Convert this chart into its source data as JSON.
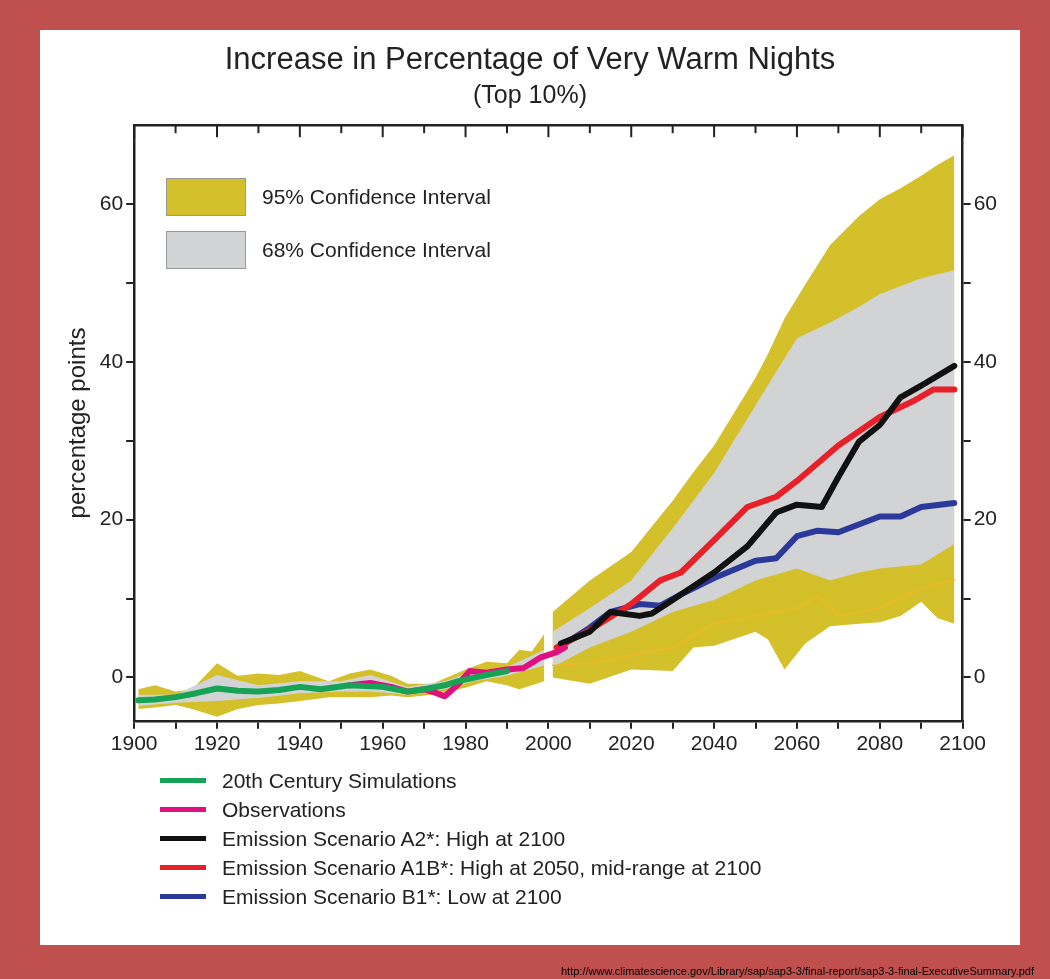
{
  "chart_data": {
    "type": "line",
    "title": "Increase in Percentage of Very Warm Nights",
    "subtitle": "(Top 10%)",
    "ylabel": "percentage points",
    "xlim": [
      1900,
      2100
    ],
    "xticks": [
      1900,
      {
        "value": 1910,
        "label": null
      },
      1920,
      {
        "value": 1930,
        "label": null
      },
      1940,
      {
        "value": 1950,
        "label": null
      },
      1960,
      {
        "value": 1970,
        "label": null
      },
      1980,
      {
        "value": 1990,
        "label": null
      },
      2000,
      {
        "value": 2010,
        "label": null
      },
      2020,
      {
        "value": 2030,
        "label": null
      },
      2040,
      {
        "value": 2050,
        "label": null
      },
      2060,
      {
        "value": 2070,
        "label": null
      },
      2080,
      {
        "value": 2090,
        "label": null
      },
      2100
    ],
    "ylim": [
      -5.5,
      70
    ],
    "yticks": [
      0,
      {
        "value": 10,
        "label": null
      },
      20,
      {
        "value": 30,
        "label": null
      },
      40,
      {
        "value": 50,
        "label": null
      },
      60
    ],
    "y2lim": [
      -5.5,
      70
    ],
    "y2ticks": [
      0,
      {
        "value": 10,
        "label": null
      },
      20,
      {
        "value": 30,
        "label": null
      },
      40,
      {
        "value": 50,
        "label": null
      },
      60
    ],
    "grid": false,
    "legend": "bottom",
    "marker": "none",
    "line_style": "solid",
    "annotations": [
      "http://www.climatescience.gov/Library/sap/sap3-3/final-report/sap3-3-final-ExecutiveSummary.pdf"
    ],
    "series": [
      {
        "name": "95% Confidence Interval",
        "type": "area",
        "color": "#d4c02a",
        "x": [
          1901,
          1905,
          1910,
          1914,
          1920,
          1925,
          1930,
          1935,
          1940,
          1947,
          1952,
          1957,
          1962,
          1966,
          1972,
          1980,
          1985,
          1990,
          1993,
          1996,
          1999,
          2000,
          2001,
          2010,
          2020,
          2030,
          2035,
          2040,
          2050,
          2053,
          2057,
          2062,
          2068,
          2075,
          2080,
          2085,
          2090,
          2094,
          2098
        ],
        "values": [
          null,
          null,
          null,
          null,
          null,
          null,
          null,
          null,
          null,
          null,
          null,
          null,
          null,
          null,
          null,
          null,
          null,
          null,
          null,
          null,
          null,
          null,
          null,
          null,
          null,
          null,
          null,
          null,
          null,
          null,
          null,
          null,
          null,
          null,
          null,
          null,
          null,
          null,
          null
        ],
        "upper": [
          -1.5,
          -1.0,
          -1.8,
          -1.5,
          1.8,
          0.2,
          0.5,
          0.3,
          0.8,
          -0.5,
          0.5,
          1.0,
          0.2,
          -0.8,
          -0.8,
          1.0,
          2.0,
          1.8,
          3.5,
          3.3,
          5.5,
          null,
          8.3,
          12.3,
          15.9,
          22.4,
          26,
          29.4,
          38,
          41,
          45.5,
          49.8,
          54.8,
          58.5,
          60.6,
          62,
          63.6,
          65,
          66.2
        ],
        "lower": [
          -4,
          -3.8,
          -3.5,
          -4,
          -5,
          -4,
          -3.5,
          -3.3,
          -3.0,
          -2.5,
          -2.5,
          -2.5,
          -2.3,
          -2.5,
          -2.2,
          -1.3,
          -0.5,
          -1,
          -1.5,
          -1.0,
          -0.5,
          null,
          0,
          -0.8,
          1.0,
          0.8,
          3.8,
          4.0,
          5.8,
          4.8,
          1.0,
          4.3,
          6.5,
          6.8,
          7.0,
          7.8,
          9.6,
          7.5,
          6.8
        ]
      },
      {
        "name": "68% Confidence Interval",
        "type": "area",
        "color": "#d1d3d4",
        "x": [
          1901,
          1910,
          1920,
          1930,
          1940,
          1950,
          1957,
          1966,
          1975,
          1982,
          1990,
          1999,
          2000,
          2001,
          2010,
          2020,
          2030,
          2040,
          2050,
          2060,
          2068,
          2075,
          2080,
          2090,
          2098
        ],
        "values": [
          null,
          null,
          null,
          null,
          null,
          null,
          null,
          null,
          null,
          null,
          null,
          null,
          null,
          null,
          null,
          null,
          null,
          null,
          null,
          null,
          null,
          null,
          null,
          null,
          null
        ],
        "upper": [
          -2.2,
          -2.2,
          0.3,
          -1.0,
          -0.5,
          -0.5,
          0.3,
          -1.2,
          -0.5,
          0.8,
          1.3,
          3.5,
          null,
          5.8,
          8.8,
          12.3,
          18.9,
          25.9,
          34.5,
          43,
          45,
          47,
          48.6,
          50.6,
          51.6
        ],
        "lower": [
          -3.6,
          -3.2,
          -3.0,
          -2.6,
          -2.0,
          -1.8,
          -1.8,
          -2.2,
          -1.5,
          -0.5,
          0.2,
          1.5,
          null,
          1.3,
          3.8,
          5.8,
          8.3,
          9.8,
          12.3,
          13.8,
          12.3,
          13.3,
          13.8,
          14.3,
          16.9
        ]
      },
      {
        "type": "line",
        "color": "#f0b828",
        "x": [
          2001,
          2010,
          2020,
          2030,
          2040,
          2050,
          2060,
          2065,
          2070,
          2080,
          2090,
          2098
        ],
        "values": [
          1.5,
          1.8,
          2.8,
          3.8,
          6.8,
          7.8,
          8.8,
          10.3,
          7.8,
          8.8,
          11.3,
          12.3
        ]
      },
      {
        "name": "20th Century Simulations",
        "color": "#17a356",
        "x": [
          1901,
          1905,
          1910,
          1915,
          1920,
          1925,
          1930,
          1935,
          1940,
          1945,
          1952,
          1960,
          1966,
          1970,
          1975,
          1978,
          1985,
          1990
        ],
        "values": [
          -2.9,
          -2.8,
          -2.5,
          -2.0,
          -1.4,
          -1.7,
          -1.8,
          -1.6,
          -1.2,
          -1.5,
          -1.0,
          -1.2,
          -1.8,
          -1.5,
          -1.0,
          -0.5,
          0.3,
          0.8
        ]
      },
      {
        "name": "Observations",
        "color": "#e0117f",
        "x": [
          1952,
          1957,
          1962,
          1966,
          1970,
          1973,
          1975,
          1978,
          1981,
          1985,
          1990,
          1994,
          1998,
          2002,
          2004
        ],
        "values": [
          -1.0,
          -0.7,
          -1.2,
          -1.8,
          -1.5,
          -2.0,
          -2.4,
          -1.0,
          0.8,
          0.6,
          1.0,
          1.2,
          2.5,
          3.2,
          3.8
        ]
      },
      {
        "name": "Emission Scenario A2*: High at 2100",
        "color": "#111111",
        "x": [
          2003,
          2010,
          2015,
          2022,
          2025,
          2030,
          2040,
          2048,
          2055,
          2060,
          2066,
          2070,
          2075,
          2080,
          2085,
          2090,
          2098
        ],
        "values": [
          4.3,
          5.8,
          8.3,
          7.8,
          8.1,
          9.8,
          13.3,
          16.6,
          20.9,
          21.9,
          21.6,
          25.4,
          29.9,
          32,
          35.5,
          37,
          39.5
        ]
      },
      {
        "name": "Emission Scenario A1B*: High at 2050, mid-range at 2100",
        "color": "#e8202a",
        "x": [
          2002,
          2010,
          2020,
          2027,
          2032,
          2040,
          2048,
          2055,
          2060,
          2070,
          2080,
          2088,
          2093,
          2098
        ],
        "values": [
          3.8,
          6,
          9.3,
          12.3,
          13.3,
          17.4,
          21.6,
          22.9,
          24.9,
          29.4,
          33,
          35,
          36.5,
          36.5
        ]
      },
      {
        "name": "Emission Scenario B1*: Low at 2100",
        "color": "#2b3a9a",
        "x": [
          2004,
          2010,
          2015,
          2022,
          2027,
          2033,
          2040,
          2050,
          2055,
          2060,
          2065,
          2070,
          2080,
          2085,
          2090,
          2098
        ],
        "values": [
          4.3,
          6.3,
          8.3,
          9.3,
          9.1,
          10.8,
          12.6,
          14.8,
          15.1,
          17.9,
          18.6,
          18.4,
          20.4,
          20.4,
          21.6,
          22.1
        ]
      }
    ]
  }
}
